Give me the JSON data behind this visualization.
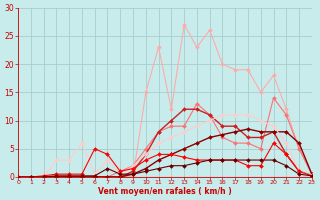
{
  "background_color": "#c8ecec",
  "grid_color": "#a8cccc",
  "xlabel": "Vent moyen/en rafales ( km/h )",
  "xlabel_color": "#cc0000",
  "tick_color": "#cc0000",
  "ylim": [
    0,
    30
  ],
  "xlim": [
    0,
    23
  ],
  "yticks": [
    0,
    5,
    10,
    15,
    20,
    25,
    30
  ],
  "xticks": [
    0,
    1,
    2,
    3,
    4,
    5,
    6,
    7,
    8,
    9,
    10,
    11,
    12,
    13,
    14,
    15,
    16,
    17,
    18,
    19,
    20,
    21,
    22,
    23
  ],
  "series": [
    {
      "x": [
        0,
        1,
        2,
        3,
        4,
        5,
        6,
        7,
        8,
        9,
        10,
        11,
        12,
        13,
        14,
        15,
        16,
        17,
        18,
        19,
        20,
        21,
        22,
        23
      ],
      "y": [
        0,
        0,
        0,
        0,
        0,
        0,
        0,
        0,
        0,
        0,
        15,
        23,
        12,
        27,
        23,
        26,
        20,
        19,
        19,
        15,
        18,
        12,
        5,
        0.5
      ],
      "color": "#ffaaaa",
      "lw": 0.8,
      "marker": "D",
      "ms": 2.0
    },
    {
      "x": [
        0,
        1,
        2,
        3,
        4,
        5,
        6,
        7,
        8,
        9,
        10,
        11,
        12,
        13,
        14,
        15,
        16,
        17,
        18,
        19,
        20,
        21,
        22,
        23
      ],
      "y": [
        0,
        0,
        0,
        0,
        0,
        0,
        0,
        0,
        1,
        2,
        5,
        8,
        9,
        9,
        13,
        11,
        7,
        6,
        6,
        5,
        14,
        11,
        5,
        0.5
      ],
      "color": "#ff7070",
      "lw": 0.8,
      "marker": "D",
      "ms": 2.0
    },
    {
      "x": [
        0,
        1,
        2,
        3,
        4,
        5,
        6,
        7,
        8,
        9,
        10,
        11,
        12,
        13,
        14,
        15,
        16,
        17,
        18,
        19,
        20,
        21,
        22,
        23
      ],
      "y": [
        0,
        0,
        0,
        0,
        0,
        0,
        0,
        0,
        0,
        1,
        4,
        8,
        10,
        12,
        12,
        11,
        9,
        9,
        7,
        7,
        8,
        4,
        1,
        0.3
      ],
      "color": "#cc2020",
      "lw": 1.0,
      "marker": "D",
      "ms": 2.0
    },
    {
      "x": [
        0,
        1,
        2,
        3,
        4,
        5,
        6,
        7,
        8,
        9,
        10,
        11,
        12,
        13,
        14,
        15,
        16,
        17,
        18,
        19,
        20,
        21,
        22,
        23
      ],
      "y": [
        0,
        0,
        0,
        0,
        0,
        0,
        0,
        0,
        0,
        0.5,
        1.5,
        3,
        4,
        5,
        6,
        7,
        7.5,
        8,
        8.5,
        8,
        8,
        8,
        6,
        0.5
      ],
      "color": "#880000",
      "lw": 1.0,
      "marker": "D",
      "ms": 2.0
    },
    {
      "x": [
        0,
        1,
        2,
        3,
        4,
        5,
        6,
        7,
        8,
        9,
        10,
        11,
        12,
        13,
        14,
        15,
        16,
        17,
        18,
        19,
        20,
        21,
        22,
        23
      ],
      "y": [
        0,
        0,
        0,
        3,
        3,
        6,
        0.5,
        3,
        0.5,
        2,
        4,
        6,
        7,
        8,
        9,
        10,
        11,
        11,
        11,
        10,
        9,
        6,
        1,
        0.3
      ],
      "color": "#ffcccc",
      "lw": 0.8,
      "marker": "D",
      "ms": 2.0
    },
    {
      "x": [
        0,
        1,
        2,
        3,
        4,
        5,
        6,
        7,
        8,
        9,
        10,
        11,
        12,
        13,
        14,
        15,
        16,
        17,
        18,
        19,
        20,
        21,
        22,
        23
      ],
      "y": [
        0,
        0,
        0.2,
        0.5,
        0.5,
        0.5,
        5,
        4,
        1,
        1.5,
        3,
        4,
        4,
        3.5,
        3,
        3,
        3,
        3,
        2,
        2,
        6,
        4,
        1,
        0.2
      ],
      "color": "#ff0000",
      "lw": 0.8,
      "marker": "D",
      "ms": 2.0
    },
    {
      "x": [
        0,
        1,
        2,
        3,
        4,
        5,
        6,
        7,
        8,
        9,
        10,
        11,
        12,
        13,
        14,
        15,
        16,
        17,
        18,
        19,
        20,
        21,
        22,
        23
      ],
      "y": [
        0,
        0,
        0,
        0.2,
        0.2,
        0.2,
        0.2,
        1.5,
        0.5,
        0.5,
        1,
        1.5,
        2,
        2,
        2.5,
        3,
        3,
        3,
        3,
        3,
        3,
        2,
        0.5,
        0.2
      ],
      "color": "#660000",
      "lw": 0.8,
      "marker": "D",
      "ms": 2.0
    }
  ]
}
